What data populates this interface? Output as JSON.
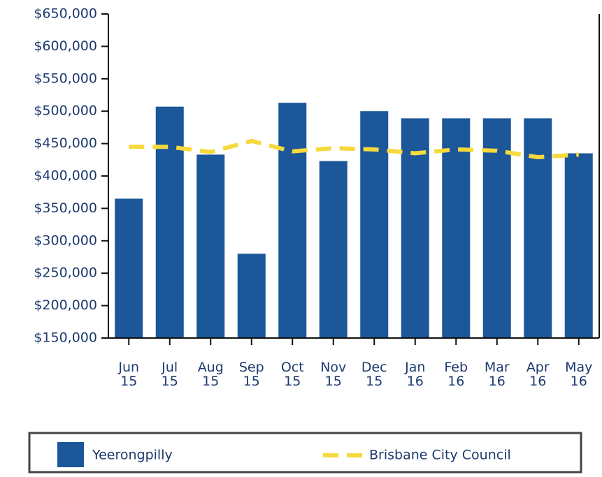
{
  "chart_data": {
    "type": "bar_line",
    "categories": [
      "Jun 15",
      "Jul 15",
      "Aug 15",
      "Sep 15",
      "Oct 15",
      "Nov 15",
      "Dec 15",
      "Jan 16",
      "Feb 16",
      "Mar 16",
      "Apr 16",
      "May 16"
    ],
    "series": [
      {
        "name": "Yeerongpilly",
        "type": "bar",
        "color": "#1b5799",
        "values": [
          365000,
          507000,
          433000,
          280000,
          513000,
          423000,
          500000,
          489000,
          489000,
          489000,
          489000,
          435000
        ]
      },
      {
        "name": "Brisbane City Council",
        "type": "line",
        "color": "#f6d93c",
        "values": [
          445000,
          445000,
          437000,
          454000,
          438000,
          443000,
          441000,
          435000,
          441000,
          439000,
          429000,
          433000
        ]
      }
    ],
    "ylim": [
      150000,
      650000
    ],
    "yticks": [
      {
        "value": 150000,
        "label": "$150,000"
      },
      {
        "value": 200000,
        "label": "$200,000"
      },
      {
        "value": 250000,
        "label": "$250,000"
      },
      {
        "value": 300000,
        "label": "$300,000"
      },
      {
        "value": 350000,
        "label": "$350,000"
      },
      {
        "value": 400000,
        "label": "$400,000"
      },
      {
        "value": 450000,
        "label": "$450,000"
      },
      {
        "value": 500000,
        "label": "$500,000"
      },
      {
        "value": 550000,
        "label": "$550,000"
      },
      {
        "value": 600000,
        "label": "$600,000"
      },
      {
        "value": 650000,
        "label": "$650,000"
      }
    ],
    "grid": false
  }
}
